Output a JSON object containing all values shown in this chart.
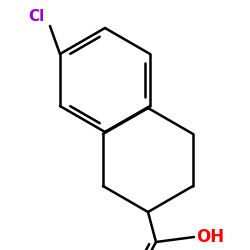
{
  "background_color": "#ffffff",
  "bond_color": "#000000",
  "cl_color": "#9900cc",
  "o_color": "#ff0000",
  "line_width": 1.8,
  "font_size_cl": 11,
  "font_size_oh": 12,
  "font_size_o": 12
}
